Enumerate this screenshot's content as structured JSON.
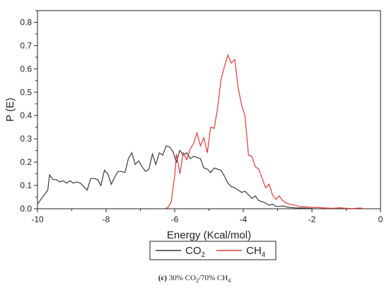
{
  "chart_data": {
    "type": "line",
    "xlabel": "Energy (Kcal/mol)",
    "ylabel": "P (E)",
    "xlim": [
      -10,
      0
    ],
    "ylim": [
      0,
      0.85
    ],
    "x_ticks": [
      "-10",
      "-8",
      "-6",
      "-4",
      "-2",
      "0"
    ],
    "y_ticks": [
      "0.0",
      "0.1",
      "0.2",
      "0.3",
      "0.4",
      "0.5",
      "0.6",
      "0.7",
      "0.8"
    ],
    "legend_position": "bottom-left, below plot",
    "grid": false,
    "series": [
      {
        "name": "CO",
        "name_subscript": "2",
        "color": "#3a3a3a",
        "points": [
          [
            -10.0,
            0.02
          ],
          [
            -9.9,
            0.04
          ],
          [
            -9.8,
            0.06
          ],
          [
            -9.7,
            0.08
          ],
          [
            -9.65,
            0.145
          ],
          [
            -9.55,
            0.125
          ],
          [
            -9.45,
            0.125
          ],
          [
            -9.35,
            0.115
          ],
          [
            -9.25,
            0.12
          ],
          [
            -9.15,
            0.11
          ],
          [
            -9.05,
            0.12
          ],
          [
            -8.95,
            0.11
          ],
          [
            -8.85,
            0.115
          ],
          [
            -8.75,
            0.11
          ],
          [
            -8.65,
            0.095
          ],
          [
            -8.55,
            0.08
          ],
          [
            -8.45,
            0.13
          ],
          [
            -8.35,
            0.13
          ],
          [
            -8.25,
            0.125
          ],
          [
            -8.15,
            0.1
          ],
          [
            -8.05,
            0.165
          ],
          [
            -7.95,
            0.15
          ],
          [
            -7.85,
            0.105
          ],
          [
            -7.75,
            0.135
          ],
          [
            -7.65,
            0.16
          ],
          [
            -7.55,
            0.16
          ],
          [
            -7.45,
            0.155
          ],
          [
            -7.35,
            0.215
          ],
          [
            -7.25,
            0.24
          ],
          [
            -7.15,
            0.19
          ],
          [
            -7.05,
            0.205
          ],
          [
            -6.95,
            0.18
          ],
          [
            -6.85,
            0.16
          ],
          [
            -6.75,
            0.17
          ],
          [
            -6.65,
            0.235
          ],
          [
            -6.55,
            0.19
          ],
          [
            -6.45,
            0.24
          ],
          [
            -6.35,
            0.23
          ],
          [
            -6.25,
            0.27
          ],
          [
            -6.15,
            0.265
          ],
          [
            -6.05,
            0.245
          ],
          [
            -5.95,
            0.2
          ],
          [
            -5.85,
            0.25
          ],
          [
            -5.75,
            0.23
          ],
          [
            -5.65,
            0.24
          ],
          [
            -5.55,
            0.215
          ],
          [
            -5.45,
            0.225
          ],
          [
            -5.35,
            0.22
          ],
          [
            -5.25,
            0.215
          ],
          [
            -5.15,
            0.175
          ],
          [
            -5.05,
            0.17
          ],
          [
            -4.95,
            0.155
          ],
          [
            -4.85,
            0.175
          ],
          [
            -4.75,
            0.17
          ],
          [
            -4.65,
            0.165
          ],
          [
            -4.55,
            0.14
          ],
          [
            -4.45,
            0.11
          ],
          [
            -4.35,
            0.095
          ],
          [
            -4.25,
            0.09
          ],
          [
            -4.15,
            0.08
          ],
          [
            -4.05,
            0.07
          ],
          [
            -3.95,
            0.075
          ],
          [
            -3.85,
            0.06
          ],
          [
            -3.75,
            0.045
          ],
          [
            -3.65,
            0.055
          ],
          [
            -3.55,
            0.035
          ],
          [
            -3.45,
            0.03
          ],
          [
            -3.35,
            0.025
          ],
          [
            -3.25,
            0.015
          ],
          [
            -3.15,
            0.02
          ],
          [
            -3.05,
            0.01
          ],
          [
            -2.95,
            0.01
          ],
          [
            -2.85,
            0.012
          ],
          [
            -2.75,
            0.008
          ],
          [
            -2.65,
            0.006
          ],
          [
            -2.5,
            0.004
          ],
          [
            -2.3,
            0.003
          ],
          [
            -2.1,
            0.002
          ],
          [
            -1.9,
            0.0
          ]
        ]
      },
      {
        "name": "CH",
        "name_subscript": "4",
        "color": "#e03a3a",
        "points": [
          [
            -6.3,
            0.0
          ],
          [
            -6.2,
            0.005
          ],
          [
            -6.1,
            0.03
          ],
          [
            -6.05,
            0.09
          ],
          [
            -6.0,
            0.14
          ],
          [
            -5.95,
            0.235
          ],
          [
            -5.85,
            0.15
          ],
          [
            -5.75,
            0.24
          ],
          [
            -5.65,
            0.21
          ],
          [
            -5.55,
            0.255
          ],
          [
            -5.45,
            0.28
          ],
          [
            -5.35,
            0.325
          ],
          [
            -5.25,
            0.27
          ],
          [
            -5.15,
            0.305
          ],
          [
            -5.05,
            0.24
          ],
          [
            -4.95,
            0.35
          ],
          [
            -4.85,
            0.345
          ],
          [
            -4.75,
            0.43
          ],
          [
            -4.65,
            0.555
          ],
          [
            -4.55,
            0.61
          ],
          [
            -4.45,
            0.66
          ],
          [
            -4.35,
            0.625
          ],
          [
            -4.25,
            0.64
          ],
          [
            -4.15,
            0.52
          ],
          [
            -4.05,
            0.445
          ],
          [
            -3.95,
            0.4
          ],
          [
            -3.85,
            0.23
          ],
          [
            -3.75,
            0.225
          ],
          [
            -3.65,
            0.18
          ],
          [
            -3.55,
            0.17
          ],
          [
            -3.45,
            0.13
          ],
          [
            -3.35,
            0.09
          ],
          [
            -3.25,
            0.105
          ],
          [
            -3.15,
            0.06
          ],
          [
            -3.05,
            0.04
          ],
          [
            -2.95,
            0.055
          ],
          [
            -2.85,
            0.035
          ],
          [
            -2.75,
            0.025
          ],
          [
            -2.65,
            0.02
          ],
          [
            -2.5,
            0.015
          ],
          [
            -2.35,
            0.01
          ],
          [
            -2.2,
            0.008
          ],
          [
            -2.0,
            0.006
          ],
          [
            -1.8,
            0.005
          ],
          [
            -1.6,
            0.003
          ],
          [
            -1.4,
            0.002
          ],
          [
            -1.2,
            0.004
          ],
          [
            -1.0,
            0.002
          ],
          [
            -0.8,
            0.001
          ],
          [
            -0.6,
            0.003
          ],
          [
            -0.45,
            0.0
          ]
        ]
      }
    ]
  },
  "caption": {
    "label": "(c)",
    "text": "30% CO",
    "sub1": "2",
    "mid": "/70% CH",
    "sub2": "4"
  }
}
